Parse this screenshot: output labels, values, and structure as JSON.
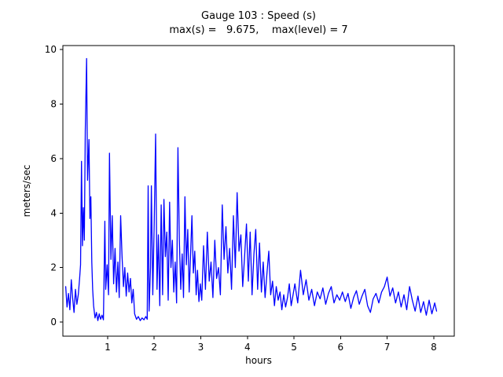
{
  "chart_data": {
    "type": "line",
    "title": "Gauge 103 : Speed (s)",
    "subtitle": "max(s) =   9.675,    max(level) = 7",
    "xlabel": "hours",
    "ylabel": "meters/sec",
    "xlim": [
      0.04,
      8.44
    ],
    "ylim": [
      -0.52,
      10.15
    ],
    "xticks": [
      1,
      2,
      3,
      4,
      5,
      6,
      7,
      8
    ],
    "yticks": [
      0,
      2,
      4,
      6,
      8,
      10
    ],
    "grid": false,
    "legend": "none",
    "line_color": "#0000ff",
    "max_s": 9.675,
    "max_level": 7,
    "x": [
      0.1,
      0.13,
      0.16,
      0.19,
      0.22,
      0.25,
      0.28,
      0.31,
      0.34,
      0.37,
      0.4,
      0.42,
      0.44,
      0.46,
      0.48,
      0.5,
      0.52,
      0.55,
      0.57,
      0.6,
      0.62,
      0.64,
      0.66,
      0.68,
      0.7,
      0.73,
      0.76,
      0.79,
      0.82,
      0.85,
      0.88,
      0.91,
      0.94,
      0.96,
      0.99,
      1.02,
      1.04,
      1.07,
      1.1,
      1.13,
      1.16,
      1.19,
      1.22,
      1.25,
      1.28,
      1.31,
      1.34,
      1.37,
      1.4,
      1.43,
      1.46,
      1.49,
      1.52,
      1.55,
      1.58,
      1.62,
      1.66,
      1.7,
      1.74,
      1.78,
      1.82,
      1.85,
      1.87,
      1.89,
      1.92,
      1.94,
      1.97,
      2.0,
      2.03,
      2.06,
      2.09,
      2.12,
      2.15,
      2.18,
      2.21,
      2.24,
      2.27,
      2.3,
      2.33,
      2.36,
      2.39,
      2.42,
      2.45,
      2.48,
      2.51,
      2.54,
      2.57,
      2.6,
      2.63,
      2.66,
      2.69,
      2.72,
      2.75,
      2.78,
      2.81,
      2.84,
      2.87,
      2.9,
      2.93,
      2.96,
      2.99,
      3.02,
      3.06,
      3.1,
      3.14,
      3.18,
      3.22,
      3.26,
      3.3,
      3.34,
      3.38,
      3.42,
      3.46,
      3.5,
      3.54,
      3.58,
      3.62,
      3.66,
      3.7,
      3.74,
      3.78,
      3.82,
      3.86,
      3.9,
      3.94,
      3.98,
      4.02,
      4.06,
      4.1,
      4.14,
      4.18,
      4.22,
      4.26,
      4.3,
      4.34,
      4.38,
      4.42,
      4.46,
      4.5,
      4.54,
      4.58,
      4.62,
      4.66,
      4.7,
      4.74,
      4.78,
      4.82,
      4.86,
      4.9,
      4.94,
      4.98,
      5.02,
      5.08,
      5.14,
      5.2,
      5.26,
      5.32,
      5.38,
      5.44,
      5.5,
      5.56,
      5.62,
      5.68,
      5.74,
      5.8,
      5.86,
      5.92,
      5.98,
      6.04,
      6.1,
      6.16,
      6.22,
      6.28,
      6.34,
      6.4,
      6.46,
      6.52,
      6.58,
      6.64,
      6.7,
      6.76,
      6.82,
      6.88,
      6.94,
      7.0,
      7.06,
      7.12,
      7.18,
      7.24,
      7.3,
      7.36,
      7.42,
      7.48,
      7.54,
      7.6,
      7.66,
      7.72,
      7.78,
      7.84,
      7.9,
      7.96,
      8.02,
      8.06
    ],
    "y": [
      1.3,
      0.55,
      1.05,
      0.45,
      1.55,
      0.85,
      0.35,
      1.2,
      0.65,
      1.0,
      1.6,
      2.1,
      5.9,
      2.8,
      4.2,
      3.0,
      7.0,
      9.675,
      5.2,
      6.7,
      3.8,
      4.6,
      2.2,
      1.2,
      0.6,
      0.15,
      0.35,
      0.05,
      0.3,
      0.1,
      0.25,
      0.08,
      3.7,
      1.2,
      2.1,
      1.0,
      6.2,
      2.3,
      3.9,
      1.4,
      2.7,
      1.1,
      2.2,
      0.9,
      3.9,
      2.4,
      1.3,
      2.0,
      0.95,
      1.8,
      1.1,
      1.6,
      0.7,
      1.2,
      0.3,
      0.1,
      0.2,
      0.05,
      0.15,
      0.08,
      0.2,
      0.1,
      5.0,
      0.4,
      2.0,
      5.0,
      1.0,
      3.6,
      6.9,
      1.2,
      3.2,
      0.6,
      4.3,
      1.0,
      4.5,
      2.4,
      3.3,
      0.8,
      4.4,
      2.0,
      3.0,
      1.1,
      2.2,
      0.7,
      6.4,
      3.0,
      1.2,
      2.5,
      0.9,
      4.6,
      2.1,
      3.4,
      1.1,
      2.4,
      3.9,
      1.8,
      2.6,
      1.0,
      1.9,
      0.75,
      1.4,
      0.8,
      2.8,
      1.2,
      3.3,
      1.5,
      2.2,
      0.9,
      3.0,
      1.6,
      2.0,
      1.0,
      4.3,
      2.3,
      3.5,
      1.8,
      2.7,
      1.2,
      3.9,
      2.0,
      4.75,
      2.6,
      3.2,
      1.3,
      2.4,
      3.6,
      1.5,
      3.3,
      1.0,
      2.5,
      3.4,
      1.2,
      2.9,
      1.1,
      2.2,
      0.9,
      1.8,
      2.6,
      1.0,
      1.5,
      0.6,
      1.3,
      0.8,
      1.1,
      0.45,
      1.0,
      0.55,
      0.9,
      1.4,
      0.6,
      1.0,
      1.4,
      0.7,
      1.9,
      1.0,
      1.55,
      0.8,
      1.2,
      0.6,
      1.1,
      0.85,
      1.25,
      0.65,
      1.05,
      1.3,
      0.7,
      1.0,
      0.8,
      1.1,
      0.75,
      1.05,
      0.5,
      0.9,
      1.15,
      0.65,
      0.95,
      1.2,
      0.6,
      0.35,
      0.85,
      1.05,
      0.7,
      1.1,
      1.3,
      1.65,
      0.95,
      1.25,
      0.7,
      1.1,
      0.55,
      1.0,
      0.45,
      1.3,
      0.8,
      0.4,
      0.95,
      0.35,
      0.75,
      0.25,
      0.8,
      0.3,
      0.7,
      0.4
    ]
  }
}
